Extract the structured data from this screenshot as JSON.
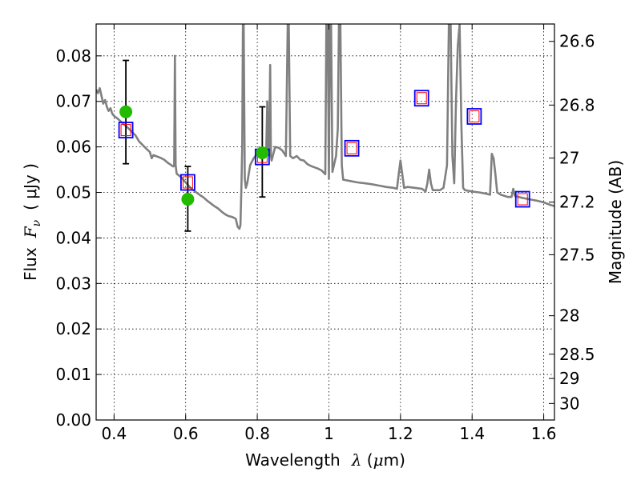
{
  "chart_data": {
    "type": "line",
    "title": "",
    "xlabel": {
      "prefix": "Wavelength",
      "symbol": "λ",
      "unit_open": " (",
      "unit_mu": "μ",
      "unit_rest": "m)"
    },
    "ylabel": {
      "prefix": "Flux",
      "symbol": "F",
      "subscript": "ν",
      "unit": "( μJy )"
    },
    "ylabel_right": "Magnitude (AB)",
    "xlim": [
      0.35,
      1.63
    ],
    "ylim": [
      0.0,
      0.087
    ],
    "grid": true,
    "x_ticks": [
      0.4,
      0.6,
      0.8,
      1.0,
      1.2,
      1.4,
      1.6
    ],
    "x_tick_labels": [
      "0.4",
      "0.6",
      "0.8",
      "1",
      "1.2",
      "1.4",
      "1.6"
    ],
    "y_ticks": [
      0.0,
      0.01,
      0.02,
      0.03,
      0.04,
      0.05,
      0.06,
      0.07,
      0.08
    ],
    "y_tick_labels": [
      "0.00",
      "0.01",
      "0.02",
      "0.03",
      "0.04",
      "0.05",
      "0.06",
      "0.07",
      "0.08"
    ],
    "right_ticks": [
      26.6,
      26.8,
      27,
      27.2,
      27.5,
      28,
      28.5,
      29,
      30
    ],
    "right_tick_labels": [
      "26.6",
      "26.8",
      "27",
      "27.2",
      "27.5",
      "28",
      "28.5",
      "29",
      "30"
    ],
    "colors": {
      "spectrum": "#808080",
      "observed": "#22bb00",
      "model_box": "#0000ff",
      "model_inner": "#ff0000",
      "errorbar": "#000000",
      "grid": "#000000"
    },
    "series": [
      {
        "kind": "spectrum",
        "points": [
          [
            0.35,
            0.0726
          ],
          [
            0.355,
            0.0718
          ],
          [
            0.36,
            0.0729
          ],
          [
            0.365,
            0.0712
          ],
          [
            0.37,
            0.0695
          ],
          [
            0.375,
            0.0703
          ],
          [
            0.38,
            0.0688
          ],
          [
            0.385,
            0.0679
          ],
          [
            0.39,
            0.0685
          ],
          [
            0.395,
            0.0673
          ],
          [
            0.4,
            0.0668
          ],
          [
            0.41,
            0.0662
          ],
          [
            0.42,
            0.0655
          ],
          [
            0.43,
            0.0648
          ],
          [
            0.44,
            0.0641
          ],
          [
            0.45,
            0.0633
          ],
          [
            0.46,
            0.0625
          ],
          [
            0.47,
            0.0612
          ],
          [
            0.48,
            0.0604
          ],
          [
            0.49,
            0.0596
          ],
          [
            0.5,
            0.0589
          ],
          [
            0.505,
            0.0575
          ],
          [
            0.51,
            0.0582
          ],
          [
            0.52,
            0.0579
          ],
          [
            0.53,
            0.0576
          ],
          [
            0.54,
            0.0572
          ],
          [
            0.55,
            0.0565
          ],
          [
            0.56,
            0.056
          ],
          [
            0.565,
            0.0557
          ],
          [
            0.568,
            0.0558
          ],
          [
            0.57,
            0.08
          ],
          [
            0.572,
            0.056
          ],
          [
            0.575,
            0.0541
          ],
          [
            0.58,
            0.0538
          ],
          [
            0.59,
            0.0531
          ],
          [
            0.6,
            0.0522
          ],
          [
            0.61,
            0.0513
          ],
          [
            0.62,
            0.0506
          ],
          [
            0.63,
            0.05
          ],
          [
            0.64,
            0.0494
          ],
          [
            0.65,
            0.0489
          ],
          [
            0.66,
            0.0482
          ],
          [
            0.67,
            0.0476
          ],
          [
            0.68,
            0.047
          ],
          [
            0.69,
            0.0465
          ],
          [
            0.7,
            0.0458
          ],
          [
            0.71,
            0.0452
          ],
          [
            0.72,
            0.0448
          ],
          [
            0.73,
            0.0446
          ],
          [
            0.74,
            0.0442
          ],
          [
            0.745,
            0.0425
          ],
          [
            0.75,
            0.042
          ],
          [
            0.753,
            0.0428
          ],
          [
            0.756,
            0.052
          ],
          [
            0.758,
            0.06
          ],
          [
            0.76,
            0.087
          ],
          [
            0.762,
            0.087
          ],
          [
            0.765,
            0.053
          ],
          [
            0.768,
            0.051
          ],
          [
            0.772,
            0.052
          ],
          [
            0.78,
            0.056
          ],
          [
            0.79,
            0.0575
          ],
          [
            0.8,
            0.0585
          ],
          [
            0.805,
            0.058
          ],
          [
            0.81,
            0.0578
          ],
          [
            0.815,
            0.058
          ],
          [
            0.82,
            0.0585
          ],
          [
            0.825,
            0.0595
          ],
          [
            0.828,
            0.07
          ],
          [
            0.83,
            0.06
          ],
          [
            0.833,
            0.058
          ],
          [
            0.836,
            0.078
          ],
          [
            0.838,
            0.058
          ],
          [
            0.84,
            0.057
          ],
          [
            0.85,
            0.06
          ],
          [
            0.86,
            0.0598
          ],
          [
            0.87,
            0.0592
          ],
          [
            0.88,
            0.058
          ],
          [
            0.885,
            0.087
          ],
          [
            0.888,
            0.087
          ],
          [
            0.892,
            0.058
          ],
          [
            0.9,
            0.0575
          ],
          [
            0.91,
            0.058
          ],
          [
            0.92,
            0.0572
          ],
          [
            0.93,
            0.057
          ],
          [
            0.94,
            0.0562
          ],
          [
            0.95,
            0.0558
          ],
          [
            0.96,
            0.0555
          ],
          [
            0.97,
            0.0552
          ],
          [
            0.98,
            0.0548
          ],
          [
            0.99,
            0.054
          ],
          [
            0.993,
            0.087
          ],
          [
            0.997,
            0.087
          ],
          [
            1.0,
            0.053
          ],
          [
            1.003,
            0.087
          ],
          [
            1.006,
            0.087
          ],
          [
            1.01,
            0.0545
          ],
          [
            1.02,
            0.058
          ],
          [
            1.025,
            0.064
          ],
          [
            1.028,
            0.087
          ],
          [
            1.032,
            0.087
          ],
          [
            1.036,
            0.056
          ],
          [
            1.04,
            0.0528
          ],
          [
            1.06,
            0.0525
          ],
          [
            1.08,
            0.0522
          ],
          [
            1.1,
            0.052
          ],
          [
            1.12,
            0.0518
          ],
          [
            1.14,
            0.0515
          ],
          [
            1.16,
            0.0512
          ],
          [
            1.18,
            0.051
          ],
          [
            1.19,
            0.0508
          ],
          [
            1.195,
            0.054
          ],
          [
            1.2,
            0.057
          ],
          [
            1.205,
            0.054
          ],
          [
            1.21,
            0.051
          ],
          [
            1.22,
            0.0512
          ],
          [
            1.24,
            0.051
          ],
          [
            1.26,
            0.0508
          ],
          [
            1.27,
            0.0502
          ],
          [
            1.275,
            0.052
          ],
          [
            1.28,
            0.055
          ],
          [
            1.285,
            0.052
          ],
          [
            1.29,
            0.0505
          ],
          [
            1.31,
            0.0505
          ],
          [
            1.32,
            0.051
          ],
          [
            1.33,
            0.056
          ],
          [
            1.335,
            0.087
          ],
          [
            1.34,
            0.087
          ],
          [
            1.345,
            0.058
          ],
          [
            1.35,
            0.052
          ],
          [
            1.355,
            0.07
          ],
          [
            1.36,
            0.082
          ],
          [
            1.365,
            0.087
          ],
          [
            1.37,
            0.065
          ],
          [
            1.375,
            0.051
          ],
          [
            1.38,
            0.0505
          ],
          [
            1.4,
            0.0502
          ],
          [
            1.42,
            0.05
          ],
          [
            1.44,
            0.0497
          ],
          [
            1.45,
            0.0495
          ],
          [
            1.455,
            0.0585
          ],
          [
            1.46,
            0.0575
          ],
          [
            1.465,
            0.054
          ],
          [
            1.47,
            0.05
          ],
          [
            1.48,
            0.0495
          ],
          [
            1.5,
            0.049
          ],
          [
            1.51,
            0.049
          ],
          [
            1.515,
            0.0508
          ],
          [
            1.52,
            0.0492
          ],
          [
            1.54,
            0.0488
          ],
          [
            1.56,
            0.0485
          ],
          [
            1.58,
            0.0482
          ],
          [
            1.6,
            0.0478
          ],
          [
            1.62,
            0.0472
          ],
          [
            1.63,
            0.047
          ]
        ]
      },
      {
        "kind": "observed",
        "points": [
          {
            "x": 0.433,
            "y": 0.0677,
            "err_low": 0.0563,
            "err_high": 0.079
          },
          {
            "x": 0.606,
            "y": 0.0485,
            "err_low": 0.0415,
            "err_high": 0.0557
          },
          {
            "x": 0.814,
            "y": 0.0587,
            "err_low": 0.049,
            "err_high": 0.0688
          }
        ]
      },
      {
        "kind": "model_photometry",
        "points": [
          {
            "x": 0.433,
            "y": 0.0637
          },
          {
            "x": 0.606,
            "y": 0.0522
          },
          {
            "x": 0.814,
            "y": 0.0578
          },
          {
            "x": 1.064,
            "y": 0.0597
          },
          {
            "x": 1.259,
            "y": 0.0707
          },
          {
            "x": 1.406,
            "y": 0.0667
          },
          {
            "x": 1.541,
            "y": 0.0485
          }
        ]
      }
    ]
  }
}
